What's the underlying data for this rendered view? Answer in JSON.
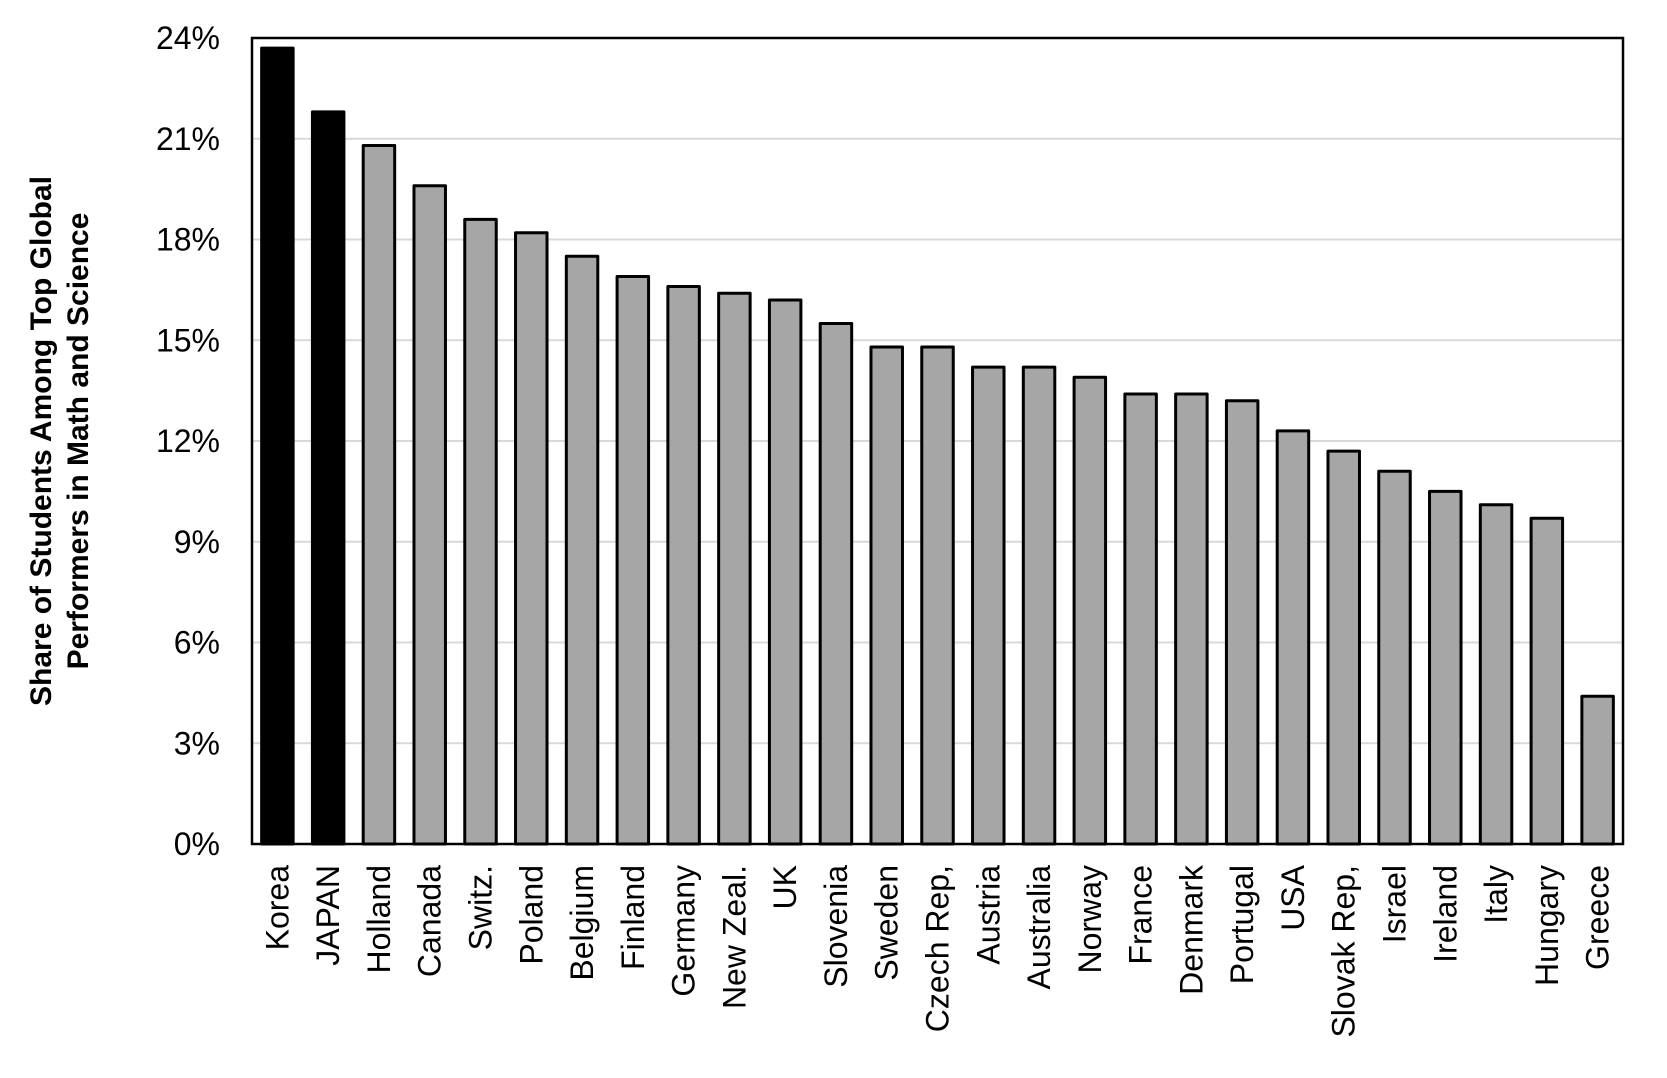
{
  "chart_data": {
    "type": "bar",
    "title": "",
    "xlabel": "",
    "ylabel": "Share of Students Among Top Global Performers in Math and Science",
    "ylabel_lines": [
      "Share of Students Among Top Global",
      "Performers in Math and Science"
    ],
    "ylim": [
      0,
      24
    ],
    "yticks": [
      0,
      3,
      6,
      9,
      12,
      15,
      18,
      21,
      24
    ],
    "ytick_labels": [
      "0%",
      "3%",
      "6%",
      "9%",
      "12%",
      "15%",
      "18%",
      "21%",
      "24%"
    ],
    "grid": true,
    "legend": "none",
    "categories": [
      "Korea",
      "JAPAN",
      "Holland",
      "Canada",
      "Switz.",
      "Poland",
      "Belgium",
      "Finland",
      "Germany",
      "New Zeal.",
      "UK",
      "Slovenia",
      "Sweden",
      "Czech Rep,",
      "Austria",
      "Australia",
      "Norway",
      "France",
      "Denmark",
      "Portugal",
      "USA",
      "Slovak Rep,",
      "Israel",
      "Ireland",
      "Italy",
      "Hungary",
      "Greece"
    ],
    "values": [
      23.7,
      21.8,
      20.8,
      19.6,
      18.6,
      18.2,
      17.5,
      16.9,
      16.6,
      16.4,
      16.2,
      15.5,
      14.8,
      14.8,
      14.2,
      14.2,
      13.9,
      13.4,
      13.4,
      13.2,
      12.3,
      11.7,
      11.1,
      10.5,
      10.1,
      9.7,
      4.4
    ],
    "highlighted": [
      "Korea",
      "JAPAN"
    ],
    "colors": {
      "highlight_fill": "#000000",
      "bar_fill": "#a6a6a6",
      "bar_stroke": "#000000",
      "grid": "#d9d9d9",
      "axis": "#000000",
      "text": "#000000"
    }
  }
}
